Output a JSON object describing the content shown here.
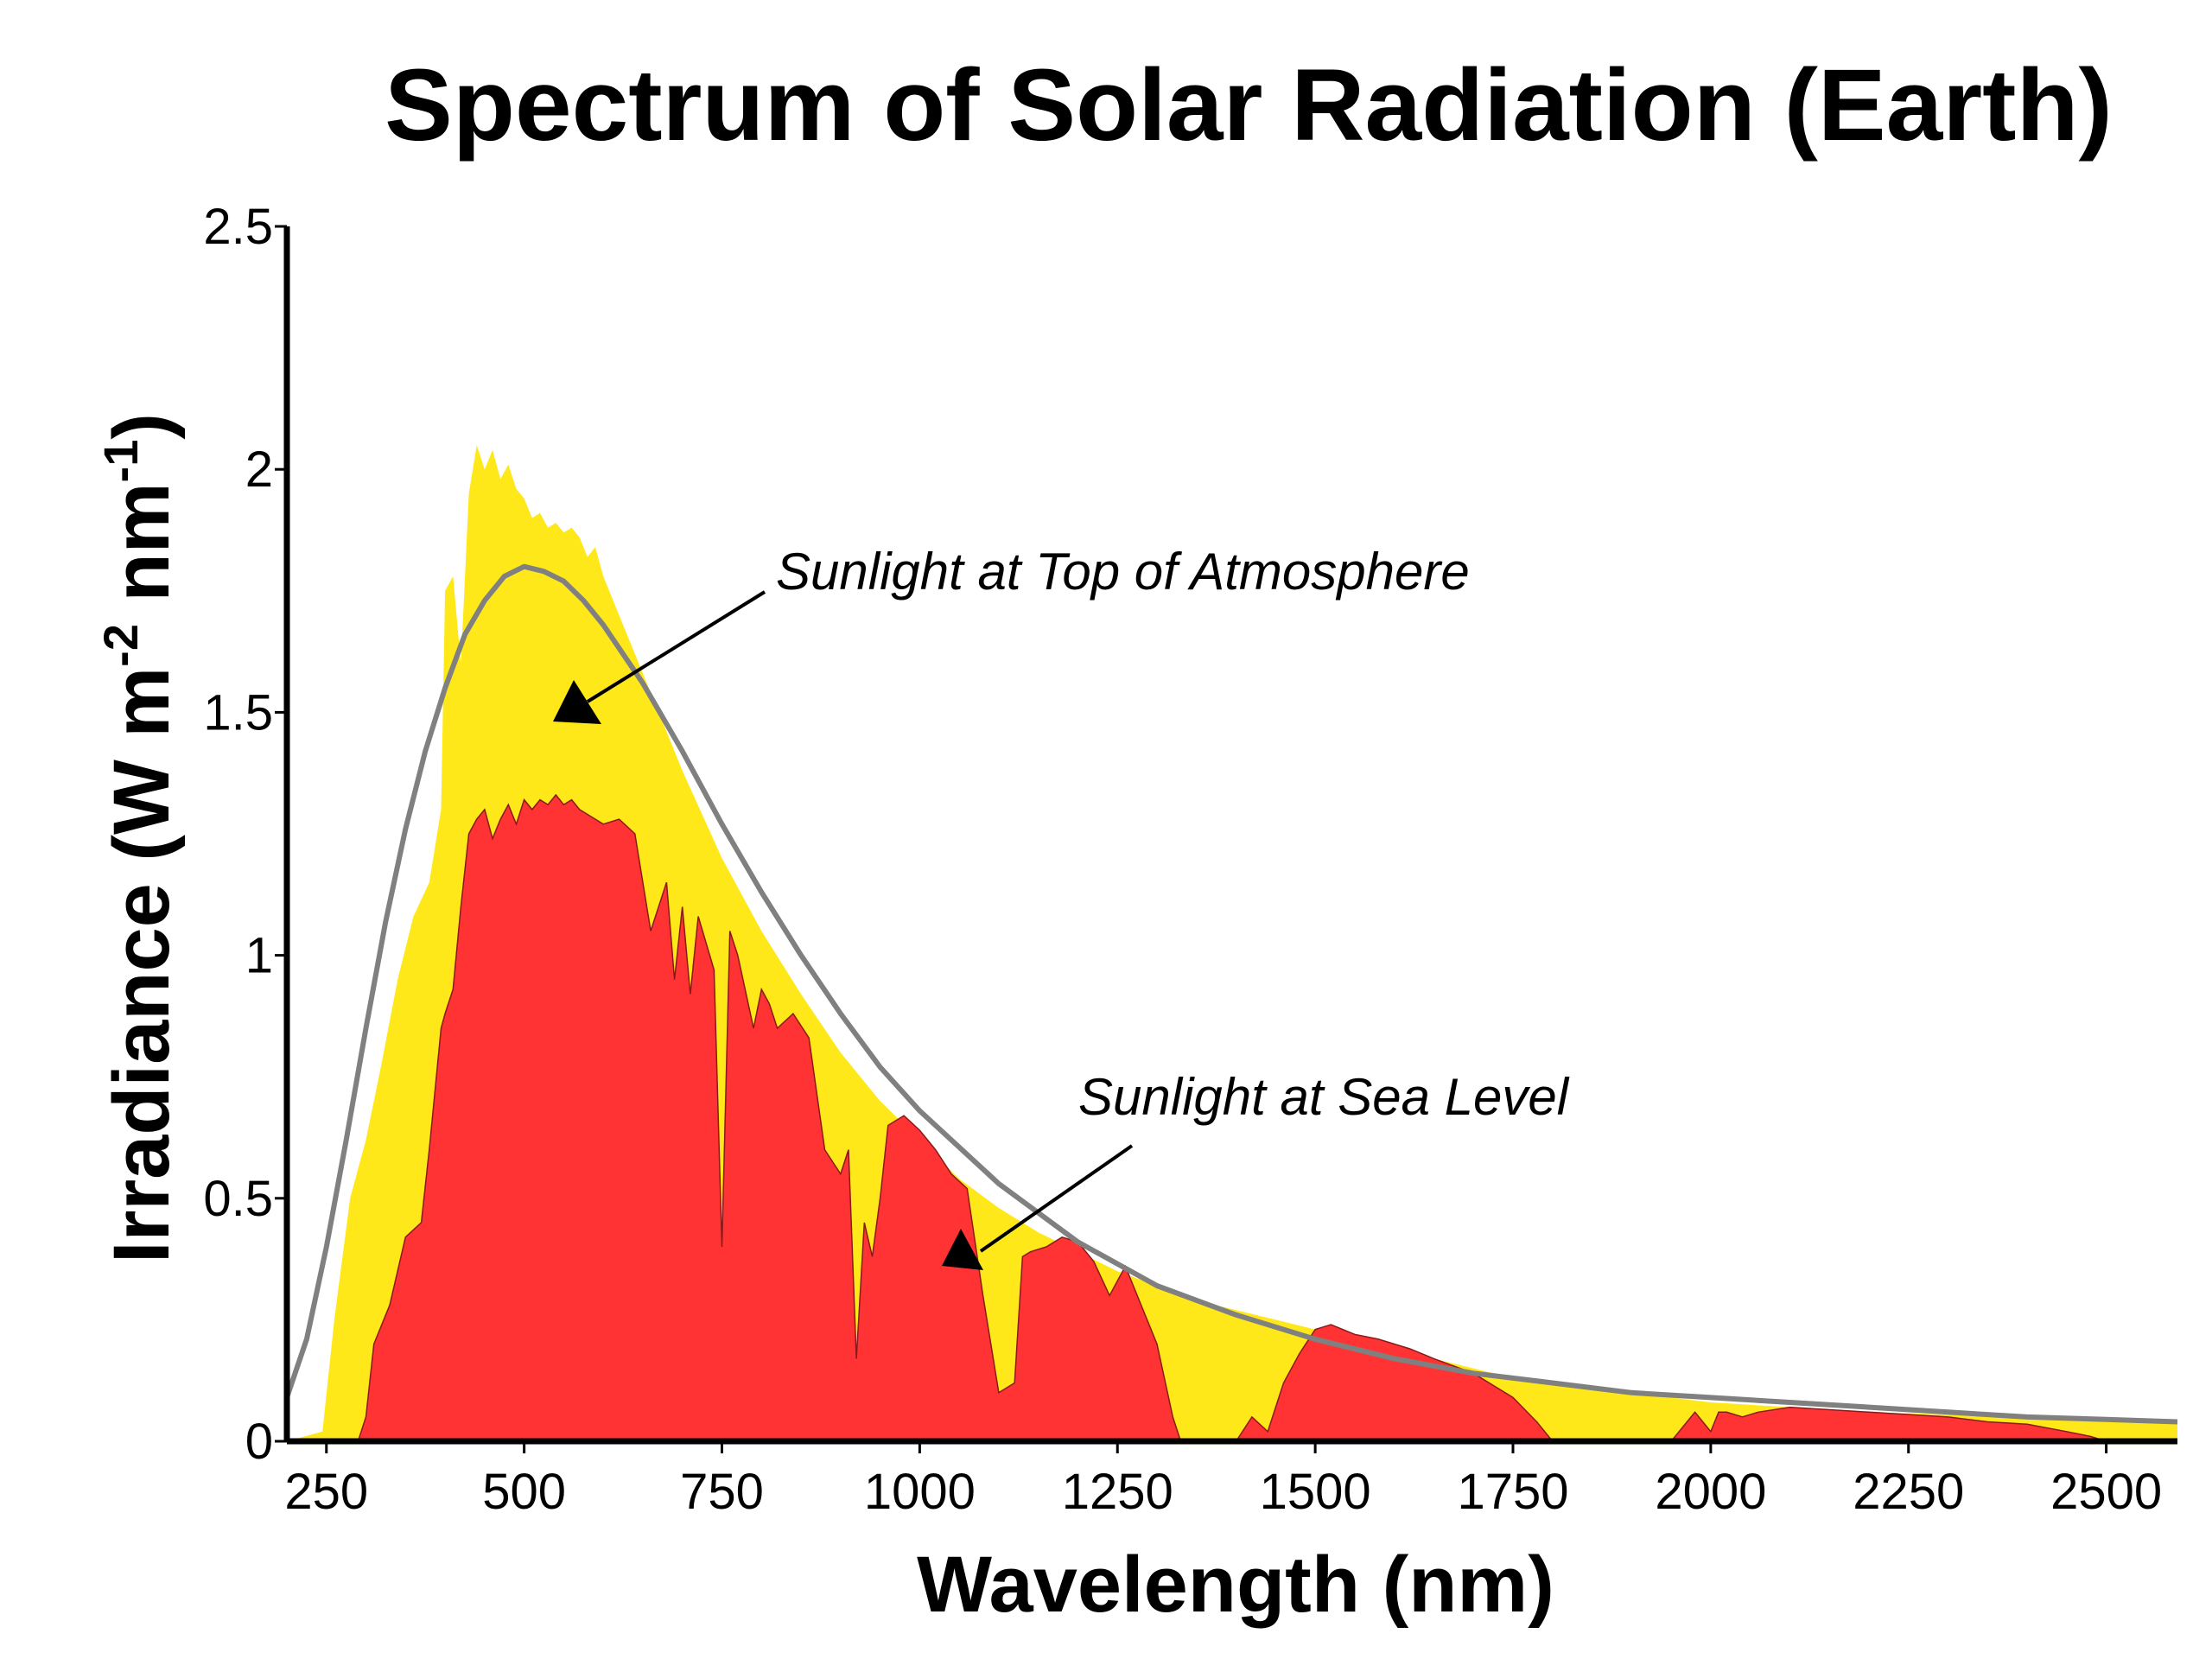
{
  "chart_data": {
    "type": "area",
    "title": "Spectrum of Solar Radiation (Earth)",
    "xlabel": "Wavelength (nm)",
    "ylabel": {
      "main": "Irradiance (W m",
      "sup1": "-2",
      "mid": " nm",
      "sup2": "-1",
      "end": ")"
    },
    "xlim": [
      200,
      2590
    ],
    "ylim": [
      0,
      2.5
    ],
    "x_ticks": [
      250,
      500,
      750,
      1000,
      1250,
      1500,
      1750,
      2000,
      2250,
      2500
    ],
    "y_ticks": [
      {
        "value": 0,
        "label": "0"
      },
      {
        "value": 0.5,
        "label": "0.5"
      },
      {
        "value": 1,
        "label": "1"
      },
      {
        "value": 1.5,
        "label": "1.5"
      },
      {
        "value": 2,
        "label": "2"
      },
      {
        "value": 2.5,
        "label": "2.5"
      }
    ],
    "grid": false,
    "colors": {
      "top_of_atmosphere": "#FFE81A",
      "sea_level": "#FF3333",
      "blackbody": "#808080",
      "axis": "#000000"
    },
    "series": [
      {
        "name": "Sunlight at Top of Atmosphere",
        "x": [
          200,
          245,
          260,
          280,
          300,
          320,
          340,
          360,
          380,
          395,
          400,
          410,
          420,
          430,
          440,
          450,
          460,
          470,
          480,
          490,
          500,
          510,
          520,
          530,
          540,
          550,
          560,
          570,
          580,
          590,
          600,
          625,
          650,
          675,
          700,
          750,
          800,
          850,
          900,
          950,
          1000,
          1050,
          1100,
          1150,
          1200,
          1250,
          1300,
          1350,
          1400,
          1450,
          1500,
          1550,
          1600,
          1650,
          1700,
          1750,
          1800,
          1850,
          1900,
          1950,
          2000,
          2050,
          2100,
          2200,
          2300,
          2400,
          2500,
          2590
        ],
        "values": [
          0,
          0.02,
          0.25,
          0.5,
          0.62,
          0.78,
          0.95,
          1.08,
          1.15,
          1.3,
          1.75,
          1.78,
          1.6,
          1.95,
          2.05,
          2.0,
          2.04,
          1.98,
          2.01,
          1.96,
          1.94,
          1.9,
          1.91,
          1.88,
          1.89,
          1.87,
          1.88,
          1.86,
          1.82,
          1.84,
          1.78,
          1.68,
          1.58,
          1.48,
          1.38,
          1.2,
          1.05,
          0.92,
          0.8,
          0.7,
          0.62,
          0.54,
          0.48,
          0.43,
          0.39,
          0.35,
          0.32,
          0.29,
          0.27,
          0.25,
          0.23,
          0.21,
          0.19,
          0.17,
          0.15,
          0.13,
          0.12,
          0.11,
          0.1,
          0.09,
          0.08,
          0.075,
          0.07,
          0.06,
          0.055,
          0.05,
          0.045,
          0.04
        ]
      },
      {
        "name": "Sunlight at Sea Level",
        "x": [
          200,
          290,
          300,
          310,
          330,
          350,
          370,
          380,
          395,
          400,
          410,
          420,
          430,
          440,
          450,
          460,
          470,
          480,
          490,
          500,
          510,
          520,
          530,
          540,
          550,
          560,
          570,
          580,
          600,
          620,
          640,
          660,
          680,
          690,
          700,
          710,
          720,
          740,
          750,
          760,
          770,
          790,
          800,
          810,
          820,
          840,
          860,
          880,
          900,
          910,
          920,
          930,
          940,
          950,
          960,
          980,
          1000,
          1020,
          1040,
          1060,
          1080,
          1100,
          1120,
          1130,
          1140,
          1160,
          1180,
          1200,
          1220,
          1240,
          1260,
          1280,
          1300,
          1320,
          1330,
          1350,
          1400,
          1420,
          1440,
          1460,
          1480,
          1500,
          1520,
          1550,
          1580,
          1600,
          1620,
          1650,
          1700,
          1750,
          1780,
          1800,
          1900,
          1950,
          1960,
          1980,
          2000,
          2010,
          2020,
          2040,
          2060,
          2100,
          2200,
          2300,
          2350,
          2400,
          2450,
          2480,
          2500,
          2590
        ],
        "values": [
          0,
          0,
          0.05,
          0.2,
          0.28,
          0.42,
          0.45,
          0.6,
          0.85,
          0.88,
          0.93,
          1.1,
          1.25,
          1.28,
          1.3,
          1.24,
          1.28,
          1.31,
          1.27,
          1.32,
          1.3,
          1.32,
          1.31,
          1.33,
          1.31,
          1.32,
          1.3,
          1.29,
          1.27,
          1.28,
          1.25,
          1.05,
          1.15,
          0.95,
          1.1,
          0.92,
          1.08,
          0.97,
          0.4,
          1.05,
          1.0,
          0.85,
          0.93,
          0.9,
          0.85,
          0.88,
          0.83,
          0.6,
          0.55,
          0.6,
          0.17,
          0.45,
          0.38,
          0.5,
          0.65,
          0.67,
          0.64,
          0.6,
          0.55,
          0.52,
          0.3,
          0.1,
          0.12,
          0.38,
          0.39,
          0.4,
          0.42,
          0.41,
          0.37,
          0.3,
          0.36,
          0.28,
          0.2,
          0.05,
          0,
          0,
          0,
          0.05,
          0.02,
          0.12,
          0.18,
          0.23,
          0.24,
          0.22,
          0.21,
          0.2,
          0.19,
          0.17,
          0.14,
          0.09,
          0.04,
          0,
          0,
          0,
          0.02,
          0.06,
          0.02,
          0.06,
          0.06,
          0.05,
          0.06,
          0.07,
          0.06,
          0.05,
          0.04,
          0.035,
          0.02,
          0.01,
          0,
          0
        ]
      },
      {
        "name": "",
        "x": [
          200,
          225,
          250,
          275,
          300,
          325,
          350,
          375,
          400,
          425,
          450,
          475,
          500,
          525,
          550,
          575,
          600,
          650,
          700,
          750,
          800,
          850,
          900,
          950,
          1000,
          1100,
          1200,
          1300,
          1400,
          1500,
          1600,
          1700,
          1800,
          1900,
          2000,
          2100,
          2200,
          2300,
          2400,
          2500,
          2590
        ],
        "values": [
          0.09,
          0.21,
          0.4,
          0.62,
          0.85,
          1.07,
          1.26,
          1.42,
          1.55,
          1.66,
          1.73,
          1.78,
          1.8,
          1.79,
          1.77,
          1.73,
          1.68,
          1.56,
          1.42,
          1.27,
          1.13,
          1.0,
          0.88,
          0.77,
          0.68,
          0.53,
          0.41,
          0.32,
          0.26,
          0.21,
          0.17,
          0.14,
          0.12,
          0.1,
          0.09,
          0.08,
          0.07,
          0.06,
          0.05,
          0.045,
          0.04
        ]
      }
    ],
    "annotations": [
      {
        "text": "Sunlight at Top of Atmosphere",
        "target_series": 0
      },
      {
        "text": "Sunlight at Sea Level",
        "target_series": 1
      }
    ]
  }
}
